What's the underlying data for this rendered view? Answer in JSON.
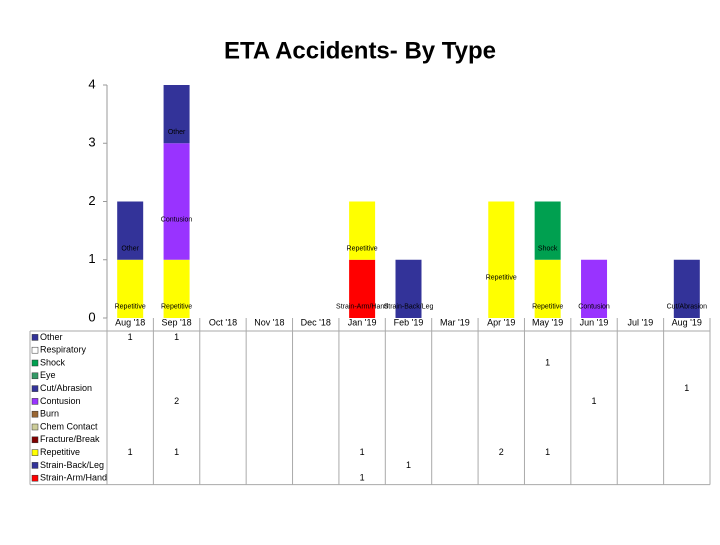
{
  "chart_data": {
    "type": "stacked-bar",
    "title": "ETA Accidents- By Type",
    "categories": [
      "Aug '18",
      "Sep '18",
      "Oct '18",
      "Nov '18",
      "Dec '18",
      "Jan '19",
      "Feb '19",
      "Mar '19",
      "Apr '19",
      "May '19",
      "Jun '19",
      "Jul '19",
      "Aug '19"
    ],
    "ylim": [
      0,
      4
    ],
    "yticks": [
      0,
      1,
      2,
      3,
      4
    ],
    "series": [
      {
        "name": "Other",
        "color": "#333399",
        "values": [
          1,
          1,
          null,
          null,
          null,
          null,
          null,
          null,
          null,
          null,
          null,
          null,
          null
        ]
      },
      {
        "name": "Respiratory",
        "color": "#ffffff",
        "values": [
          null,
          null,
          null,
          null,
          null,
          null,
          null,
          null,
          null,
          null,
          null,
          null,
          null
        ]
      },
      {
        "name": "Shock",
        "color": "#00a050",
        "values": [
          null,
          null,
          null,
          null,
          null,
          null,
          null,
          null,
          null,
          1,
          null,
          null,
          null
        ]
      },
      {
        "name": "Eye",
        "color": "#339966",
        "values": [
          null,
          null,
          null,
          null,
          null,
          null,
          null,
          null,
          null,
          null,
          null,
          null,
          null
        ]
      },
      {
        "name": "Cut/Abrasion",
        "color": "#333399",
        "values": [
          null,
          null,
          null,
          null,
          null,
          null,
          null,
          null,
          null,
          null,
          null,
          null,
          1
        ]
      },
      {
        "name": "Contusion",
        "color": "#9933ff",
        "values": [
          null,
          2,
          null,
          null,
          null,
          null,
          null,
          null,
          null,
          null,
          1,
          null,
          null
        ]
      },
      {
        "name": "Burn",
        "color": "#996633",
        "values": [
          null,
          null,
          null,
          null,
          null,
          null,
          null,
          null,
          null,
          null,
          null,
          null,
          null
        ]
      },
      {
        "name": "Chem Contact",
        "color": "#cccc99",
        "values": [
          null,
          null,
          null,
          null,
          null,
          null,
          null,
          null,
          null,
          null,
          null,
          null,
          null
        ]
      },
      {
        "name": "Fracture/Break",
        "color": "#800000",
        "values": [
          null,
          null,
          null,
          null,
          null,
          null,
          null,
          null,
          null,
          null,
          null,
          null,
          null
        ]
      },
      {
        "name": "Repetitive",
        "color": "#ffff00",
        "values": [
          1,
          1,
          null,
          null,
          null,
          1,
          null,
          null,
          2,
          1,
          null,
          null,
          null
        ]
      },
      {
        "name": "Strain-Back/Leg",
        "color": "#333399",
        "values": [
          null,
          null,
          null,
          null,
          null,
          null,
          1,
          null,
          null,
          null,
          null,
          null,
          null
        ]
      },
      {
        "name": "Strain-Arm/Hand",
        "color": "#ff0000",
        "values": [
          null,
          null,
          null,
          null,
          null,
          1,
          null,
          null,
          null,
          null,
          null,
          null,
          null
        ]
      }
    ]
  }
}
